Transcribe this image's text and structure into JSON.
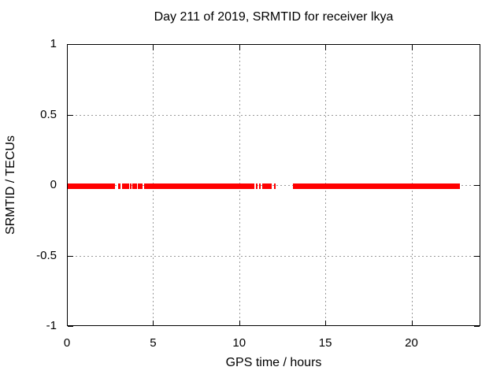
{
  "chart_data": {
    "type": "scatter",
    "title": "Day 211 of 2019, SRMTID for receiver lkya",
    "xlabel": "GPS time / hours",
    "ylabel": "SRMTID / TECUs",
    "xlim": [
      0,
      24
    ],
    "ylim": [
      -1,
      1
    ],
    "xticks": [
      0,
      5,
      10,
      15,
      20
    ],
    "yticks": [
      1,
      0.5,
      0,
      -0.5,
      -1
    ],
    "grid": true,
    "grid_color": "#999999",
    "axis_color": "#000000",
    "background_color": "#ffffff",
    "legend": "none",
    "series": [
      {
        "name": "SRMTID",
        "color": "#ff0000",
        "marker": "square",
        "y_value": 0,
        "segments_hours": [
          [
            0.05,
            2.79
          ],
          [
            2.97,
            3.09
          ],
          [
            3.18,
            3.61
          ],
          [
            4.5,
            10.88
          ],
          [
            11.34,
            11.87
          ],
          [
            13.13,
            22.81
          ]
        ],
        "isolated_points_hours": [
          3.7,
          3.83,
          3.93,
          4.04,
          4.15,
          4.25,
          4.36,
          11.03,
          11.2,
          12.08
        ]
      }
    ]
  }
}
